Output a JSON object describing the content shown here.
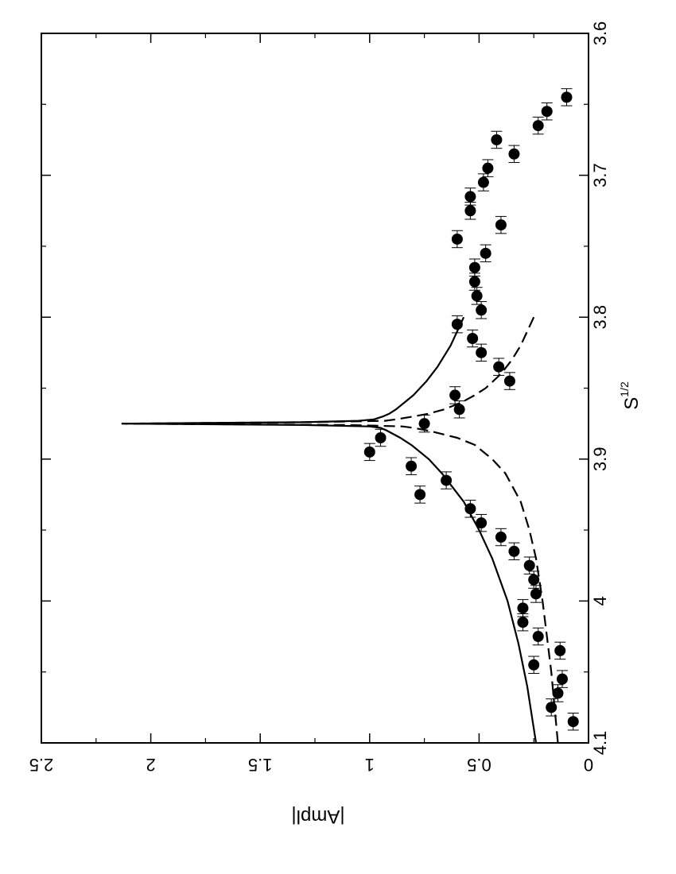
{
  "chart_data": {
    "type": "scatter",
    "orientation": "rotated-90-ccw",
    "xlabel": "S",
    "xlabel_sup": "1/2",
    "ylabel": "|Ampl|",
    "xlim": [
      3.6,
      4.1
    ],
    "ylim": [
      0,
      2.5
    ],
    "x_ticks": [
      3.6,
      3.7,
      3.8,
      3.9,
      4,
      4.1
    ],
    "x_tick_labels": [
      "3.6",
      "3.7",
      "3.8",
      "3.9",
      "4",
      "4.1"
    ],
    "y_ticks": [
      0,
      0.5,
      1,
      1.5,
      2,
      2.5
    ],
    "y_tick_labels": [
      "0",
      "0.5",
      "1",
      "1.5",
      "2",
      "2.5"
    ],
    "grid": false,
    "series": [
      {
        "kind": "points",
        "marker": "filled-circle",
        "error_bars": "x",
        "x_err": 0.006,
        "x": [
          3.645,
          3.655,
          3.665,
          3.675,
          3.685,
          3.695,
          3.705,
          3.715,
          3.725,
          3.735,
          3.745,
          3.755,
          3.765,
          3.775,
          3.785,
          3.795,
          3.805,
          3.815,
          3.825,
          3.835,
          3.845,
          3.855,
          3.865,
          3.875,
          3.885,
          3.895,
          3.905,
          3.915,
          3.925,
          3.935,
          3.945,
          3.955,
          3.965,
          3.975,
          3.985,
          3.995,
          4.005,
          4.015,
          4.025,
          4.035,
          4.045,
          4.055,
          4.065,
          4.075,
          4.085
        ],
        "y": [
          0.1,
          0.19,
          0.23,
          0.42,
          0.34,
          0.46,
          0.48,
          0.54,
          0.54,
          0.4,
          0.6,
          0.47,
          0.52,
          0.52,
          0.51,
          0.49,
          0.6,
          0.53,
          0.49,
          0.41,
          0.36,
          0.61,
          0.59,
          0.75,
          0.95,
          1.0,
          0.81,
          0.65,
          0.77,
          0.54,
          0.49,
          0.4,
          0.34,
          0.27,
          0.25,
          0.24,
          0.3,
          0.3,
          0.23,
          0.13,
          0.25,
          0.12,
          0.14,
          0.17,
          0.07
        ]
      },
      {
        "kind": "curve",
        "style": "solid",
        "x": [
          3.8,
          3.82,
          3.835,
          3.845,
          3.855,
          3.86,
          3.865,
          3.868,
          3.87,
          3.872,
          3.873,
          3.874,
          3.875,
          3.876,
          3.877,
          3.878,
          3.88,
          3.885,
          3.89,
          3.9,
          3.91,
          3.93,
          3.95,
          3.97,
          4.0,
          4.03,
          4.06,
          4.1
        ],
        "y": [
          0.57,
          0.63,
          0.69,
          0.74,
          0.8,
          0.84,
          0.88,
          0.91,
          0.94,
          0.98,
          1.05,
          1.3,
          2.13,
          1.3,
          1.0,
          0.95,
          0.92,
          0.86,
          0.81,
          0.73,
          0.67,
          0.57,
          0.5,
          0.44,
          0.37,
          0.32,
          0.28,
          0.24
        ]
      },
      {
        "kind": "curve",
        "style": "dashed",
        "x": [
          3.8,
          3.81,
          3.82,
          3.83,
          3.84,
          3.85,
          3.855,
          3.86,
          3.865,
          3.868,
          3.87,
          3.872,
          3.873,
          3.874,
          3.875,
          3.876,
          3.877,
          3.878,
          3.88,
          3.885,
          3.89,
          3.9,
          3.91,
          3.93,
          3.95,
          3.97,
          4.0,
          4.05,
          4.1
        ],
        "y": [
          0.25,
          0.28,
          0.31,
          0.35,
          0.4,
          0.47,
          0.52,
          0.58,
          0.66,
          0.73,
          0.8,
          0.88,
          0.93,
          1.3,
          2.13,
          1.1,
          0.85,
          0.8,
          0.73,
          0.6,
          0.52,
          0.44,
          0.38,
          0.31,
          0.27,
          0.24,
          0.21,
          0.17,
          0.14
        ]
      }
    ]
  }
}
